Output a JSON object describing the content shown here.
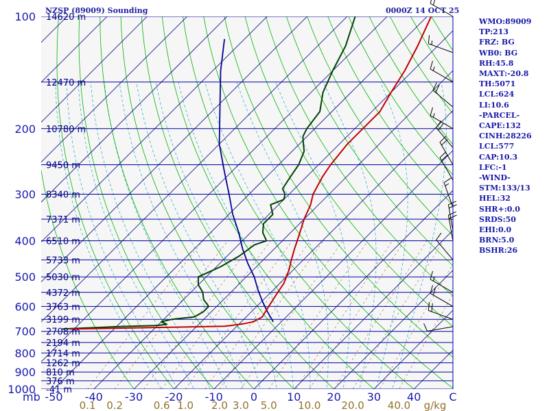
{
  "header": {
    "station_title": "NZSP (89009) Sounding",
    "valid_time": "0000Z 14 OCT 25"
  },
  "params": [
    "WMO:89009",
    "TP:213",
    "FRZ: BG",
    "WB0: BG",
    "RH:45.8",
    "MAXT:-20.8",
    "TH:5071",
    "LCL:624",
    "LI:10.6",
    "-PARCEL-",
    "CAPE:132",
    "CINH:28226",
    "LCL:577",
    "CAP:10.3",
    "LFC:-1",
    "-WIND-",
    "STM:133/13",
    "HEL:32",
    "SHR+:0.0",
    "SRDS:50",
    "EHI:0.0",
    "BRN:5.0",
    "BSHR:26"
  ],
  "colors": {
    "isobar": "#0000a0",
    "isotherm": "#000080",
    "dry_adiabat": "#00b400",
    "moist_adiabat": "#40b0c8",
    "mixing_ratio": "#a09060",
    "temperature": "#c00000",
    "dewpoint": "#004000",
    "parcel": "#000090",
    "axis_label": "#1818b0",
    "mixing_label": "#907028",
    "wind_barb": "#000000"
  },
  "chart_data": {
    "type": "line",
    "pressure_unit": "mb",
    "temp_unit": "C",
    "mixing_unit": "g/kg",
    "pressure_levels": [
      "100",
      "200",
      "300",
      "400",
      "500",
      "600",
      "700",
      "800",
      "900",
      "1000"
    ],
    "temp_ticks": [
      "-50",
      "-40",
      "-30",
      "-20",
      "-10",
      "0",
      "10",
      "20",
      "30",
      "40",
      "C"
    ],
    "mixing_ratio_labels": [
      "0.1",
      "0.2",
      "0.6",
      "1.0",
      "2.0",
      "3.0",
      "5.0",
      "10.0",
      "20.0",
      "40.0"
    ],
    "height_labels": [
      {
        "p": 100,
        "label": "14620 m"
      },
      {
        "p": 150,
        "label": "12470 m"
      },
      {
        "p": 200,
        "label": "10780 m"
      },
      {
        "p": 250,
        "label": "9450 m"
      },
      {
        "p": 300,
        "label": "8340 m"
      },
      {
        "p": 350,
        "label": "7371 m"
      },
      {
        "p": 400,
        "label": "6510 m"
      },
      {
        "p": 450,
        "label": "5733 m"
      },
      {
        "p": 500,
        "label": "5030 m"
      },
      {
        "p": 550,
        "label": "4372 m"
      },
      {
        "p": 600,
        "label": "3763 m"
      },
      {
        "p": 650,
        "label": "3199 m"
      },
      {
        "p": 700,
        "label": "2708 m"
      },
      {
        "p": 750,
        "label": "2194 m"
      },
      {
        "p": 800,
        "label": "1714 m"
      },
      {
        "p": 850,
        "label": "1262 m"
      },
      {
        "p": 900,
        "label": "810 m"
      },
      {
        "p": 950,
        "label": "376 m"
      },
      {
        "p": 1000,
        "label": "-41 m"
      }
    ],
    "temperature": [
      {
        "p": 690,
        "t": -61
      },
      {
        "p": 686,
        "t": -48
      },
      {
        "p": 682,
        "t": -35
      },
      {
        "p": 678,
        "t": -23
      },
      {
        "p": 668,
        "t": -19
      },
      {
        "p": 660,
        "t": -17
      },
      {
        "p": 640,
        "t": -16
      },
      {
        "p": 600,
        "t": -17
      },
      {
        "p": 560,
        "t": -18
      },
      {
        "p": 520,
        "t": -19
      },
      {
        "p": 480,
        "t": -21
      },
      {
        "p": 450,
        "t": -23
      },
      {
        "p": 420,
        "t": -25
      },
      {
        "p": 390,
        "t": -27
      },
      {
        "p": 350,
        "t": -30
      },
      {
        "p": 320,
        "t": -32
      },
      {
        "p": 300,
        "t": -34
      },
      {
        "p": 270,
        "t": -36
      },
      {
        "p": 250,
        "t": -37
      },
      {
        "p": 220,
        "t": -38
      },
      {
        "p": 200,
        "t": -38
      },
      {
        "p": 180,
        "t": -38
      },
      {
        "p": 160,
        "t": -40
      },
      {
        "p": 140,
        "t": -42
      },
      {
        "p": 120,
        "t": -45
      },
      {
        "p": 100,
        "t": -49
      }
    ],
    "dewpoint": [
      {
        "p": 690,
        "t": -63
      },
      {
        "p": 680,
        "t": -50
      },
      {
        "p": 675,
        "t": -40
      },
      {
        "p": 670,
        "t": -38
      },
      {
        "p": 660,
        "t": -40
      },
      {
        "p": 650,
        "t": -38
      },
      {
        "p": 640,
        "t": -33
      },
      {
        "p": 620,
        "t": -32
      },
      {
        "p": 600,
        "t": -32
      },
      {
        "p": 575,
        "t": -35
      },
      {
        "p": 550,
        "t": -37
      },
      {
        "p": 525,
        "t": -40
      },
      {
        "p": 500,
        "t": -42
      },
      {
        "p": 470,
        "t": -39
      },
      {
        "p": 440,
        "t": -37
      },
      {
        "p": 410,
        "t": -36
      },
      {
        "p": 400,
        "t": -34
      },
      {
        "p": 380,
        "t": -37
      },
      {
        "p": 360,
        "t": -39
      },
      {
        "p": 340,
        "t": -39
      },
      {
        "p": 320,
        "t": -42
      },
      {
        "p": 310,
        "t": -40
      },
      {
        "p": 300,
        "t": -41
      },
      {
        "p": 290,
        "t": -43
      },
      {
        "p": 270,
        "t": -44
      },
      {
        "p": 250,
        "t": -45
      },
      {
        "p": 230,
        "t": -47
      },
      {
        "p": 220,
        "t": -49
      },
      {
        "p": 210,
        "t": -51
      },
      {
        "p": 200,
        "t": -52
      },
      {
        "p": 180,
        "t": -53
      },
      {
        "p": 160,
        "t": -57
      },
      {
        "p": 140,
        "t": -60
      },
      {
        "p": 120,
        "t": -63
      },
      {
        "p": 100,
        "t": -68
      }
    ],
    "parcel": [
      {
        "p": 660,
        "t": -12
      },
      {
        "p": 620,
        "t": -16
      },
      {
        "p": 580,
        "t": -20
      },
      {
        "p": 540,
        "t": -24
      },
      {
        "p": 500,
        "t": -28
      },
      {
        "p": 460,
        "t": -33
      },
      {
        "p": 420,
        "t": -38
      },
      {
        "p": 380,
        "t": -43
      },
      {
        "p": 340,
        "t": -49
      },
      {
        "p": 300,
        "t": -55
      },
      {
        "p": 260,
        "t": -62
      },
      {
        "p": 220,
        "t": -70
      },
      {
        "p": 180,
        "t": -78
      },
      {
        "p": 140,
        "t": -88
      },
      {
        "p": 115,
        "t": -95
      }
    ],
    "winds": [
      {
        "p": 100,
        "dir": 300,
        "spd": 20
      },
      {
        "p": 125,
        "dir": 290,
        "spd": 15
      },
      {
        "p": 150,
        "dir": 300,
        "spd": 15
      },
      {
        "p": 175,
        "dir": 310,
        "spd": 20
      },
      {
        "p": 200,
        "dir": 300,
        "spd": 15
      },
      {
        "p": 225,
        "dir": 320,
        "spd": 20
      },
      {
        "p": 250,
        "dir": 330,
        "spd": 20
      },
      {
        "p": 275,
        "dir": 330,
        "spd": 20
      },
      {
        "p": 325,
        "dir": 340,
        "spd": 15
      },
      {
        "p": 375,
        "dir": 350,
        "spd": 20
      },
      {
        "p": 400,
        "dir": 350,
        "spd": 20
      },
      {
        "p": 450,
        "dir": 320,
        "spd": 10
      },
      {
        "p": 550,
        "dir": 300,
        "spd": 15
      },
      {
        "p": 600,
        "dir": 300,
        "spd": 20
      },
      {
        "p": 650,
        "dir": 290,
        "spd": 20
      },
      {
        "p": 680,
        "dir": 260,
        "spd": 10
      }
    ]
  }
}
